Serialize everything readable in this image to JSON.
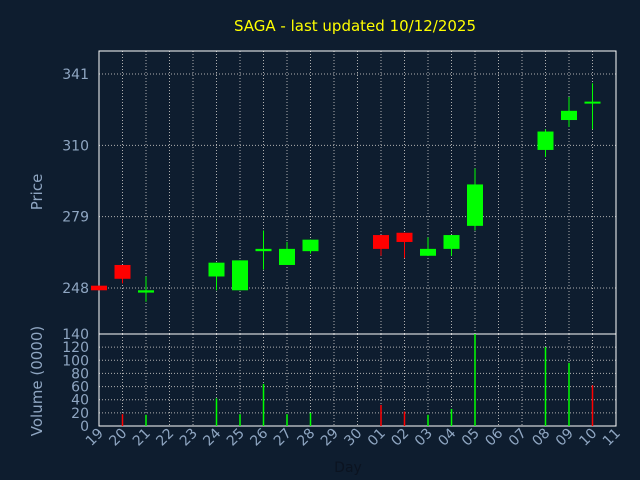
{
  "chart_data": [
    {
      "type": "candlestick",
      "title": "SAGA - last updated 10/12/2025",
      "ylabel": "Price",
      "xlabel": "Day",
      "ylim": [
        228,
        351
      ],
      "yticks": [
        248,
        279,
        310,
        341
      ],
      "grid": true,
      "x_ticks": [
        "19",
        "20",
        "21",
        "22",
        "23",
        "24",
        "25",
        "26",
        "27",
        "28",
        "29",
        "30",
        "01",
        "02",
        "03",
        "04",
        "05",
        "06",
        "07",
        "08",
        "09",
        "10",
        "11"
      ],
      "candles": [
        {
          "day": "19",
          "open": 249,
          "close": 247,
          "high": 249,
          "low": 247
        },
        {
          "day": "20",
          "open": 258,
          "close": 252,
          "high": 258,
          "low": 250
        },
        {
          "day": "21",
          "open": 246,
          "close": 247,
          "high": 253,
          "low": 242
        },
        {
          "day": "24",
          "open": 253,
          "close": 259,
          "high": 259,
          "low": 247
        },
        {
          "day": "25",
          "open": 247,
          "close": 260,
          "high": 260,
          "low": 247
        },
        {
          "day": "26",
          "open": 264,
          "close": 265,
          "high": 273,
          "low": 256
        },
        {
          "day": "27",
          "open": 258,
          "close": 265,
          "high": 268,
          "low": 258
        },
        {
          "day": "28",
          "open": 264,
          "close": 269,
          "high": 269,
          "low": 263
        },
        {
          "day": "01",
          "open": 271,
          "close": 265,
          "high": 271,
          "low": 262
        },
        {
          "day": "02",
          "open": 272,
          "close": 268,
          "high": 272,
          "low": 261
        },
        {
          "day": "03",
          "open": 262,
          "close": 265,
          "high": 270,
          "low": 262
        },
        {
          "day": "04",
          "open": 265,
          "close": 271,
          "high": 271,
          "low": 262
        },
        {
          "day": "05",
          "open": 275,
          "close": 293,
          "high": 300,
          "low": 273
        },
        {
          "day": "08",
          "open": 308,
          "close": 316,
          "high": 317,
          "low": 305
        },
        {
          "day": "09",
          "open": 321,
          "close": 325,
          "high": 331,
          "low": 318
        },
        {
          "day": "10",
          "open": 329,
          "close": 329,
          "high": 337,
          "low": 317
        }
      ]
    },
    {
      "type": "bar",
      "ylabel": "Volume (0000)",
      "ylim": [
        0,
        140
      ],
      "yticks": [
        0,
        20,
        40,
        60,
        80,
        100,
        120,
        140
      ],
      "grid": true,
      "bars": [
        {
          "day": "20",
          "value": 18,
          "color": "#ff0000"
        },
        {
          "day": "21",
          "value": 17,
          "color": "#00ff00"
        },
        {
          "day": "24",
          "value": 42,
          "color": "#00ff00"
        },
        {
          "day": "25",
          "value": 18,
          "color": "#00ff00"
        },
        {
          "day": "26",
          "value": 64,
          "color": "#00ff00"
        },
        {
          "day": "27",
          "value": 18,
          "color": "#00ff00"
        },
        {
          "day": "28",
          "value": 20,
          "color": "#00ff00"
        },
        {
          "day": "01",
          "value": 32,
          "color": "#ff0000"
        },
        {
          "day": "02",
          "value": 22,
          "color": "#ff0000"
        },
        {
          "day": "03",
          "value": 17,
          "color": "#00ff00"
        },
        {
          "day": "04",
          "value": 26,
          "color": "#00ff00"
        },
        {
          "day": "05",
          "value": 140,
          "color": "#00ff00"
        },
        {
          "day": "08",
          "value": 120,
          "color": "#00ff00"
        },
        {
          "day": "09",
          "value": 96,
          "color": "#00ff00"
        },
        {
          "day": "10",
          "value": 62,
          "color": "#ff0000"
        }
      ]
    }
  ],
  "colors": {
    "background": "#0e1d2f",
    "title": "#ffff00",
    "axis_text": "#8fa6c2",
    "frame": "#ffffff",
    "grid": "#b0b0b0",
    "up": "#00ff00",
    "down": "#ff0000"
  }
}
